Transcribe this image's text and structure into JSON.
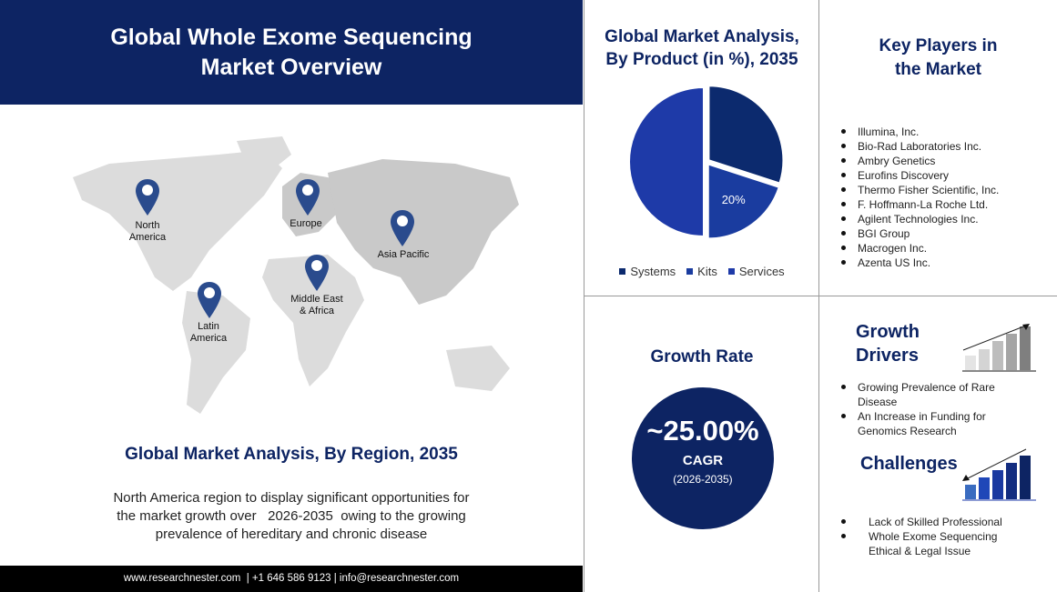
{
  "header": {
    "title_line1": "Global Whole Exome Sequencing",
    "title_line2": "Market Overview"
  },
  "map": {
    "regions": [
      {
        "name": "North America",
        "line1": "North",
        "line2": "America"
      },
      {
        "name": "Europe",
        "line1": "Europe",
        "line2": ""
      },
      {
        "name": "Asia Pacific",
        "line1": "Asia Pacific",
        "line2": ""
      },
      {
        "name": "Middle East & Africa",
        "line1": "Middle East",
        "line2": "& Africa"
      },
      {
        "name": "Latin America",
        "line1": "Latin",
        "line2": "America"
      }
    ],
    "pin_color": "#2a4b8d"
  },
  "region": {
    "title": "Global Market Analysis, By Region, 2035",
    "desc_line1": "North America region to display significant opportunities for",
    "desc_line2": "the market growth over   2026-2035  owing to the growing",
    "desc_line3": "prevalence of hereditary and chronic disease"
  },
  "footer": {
    "text": "www.researchnester.com  | +1 646 586 9123 | info@researchnester.com"
  },
  "product": {
    "title_line1": "Global Market Analysis,",
    "title_line2": "By Product (in %), 2035"
  },
  "chart_data": {
    "type": "pie",
    "title": "Global Market Analysis, By Product (in %), 2035",
    "categories": [
      "Systems",
      "Kits",
      "Services"
    ],
    "values": [
      30,
      20,
      50
    ],
    "data_labels": [
      "",
      "20%",
      ""
    ],
    "colors": [
      "#0c2a6e",
      "#1a3c9f",
      "#1e3aa8"
    ],
    "legend_placement": "bottom"
  },
  "key_players": {
    "title_line1": "Key Players in",
    "title_line2": "the Market",
    "items": [
      "Illumina, Inc.",
      "Bio-Rad Laboratories Inc.",
      "Ambry Genetics",
      "Eurofins Discovery",
      "Thermo Fisher Scientific, Inc.",
      "F. Hoffmann-La Roche Ltd.",
      "Agilent Technologies Inc.",
      "BGI Group",
      "Macrogen Inc.",
      "Azenta US Inc."
    ]
  },
  "growth": {
    "title": "Growth Rate",
    "value": "~25.00%",
    "label": "CAGR",
    "period": "(2026-2035)"
  },
  "drivers": {
    "title_line1": "Growth",
    "title_line2": "Drivers",
    "items": [
      "Growing  Prevalence of Rare Disease",
      "An Increase in Funding  for Genomics  Research"
    ]
  },
  "challenges": {
    "title": "Challenges",
    "items": [
      "Lack of Skilled Professional",
      "Whole Exome Sequencing Ethical & Legal Issue"
    ]
  }
}
